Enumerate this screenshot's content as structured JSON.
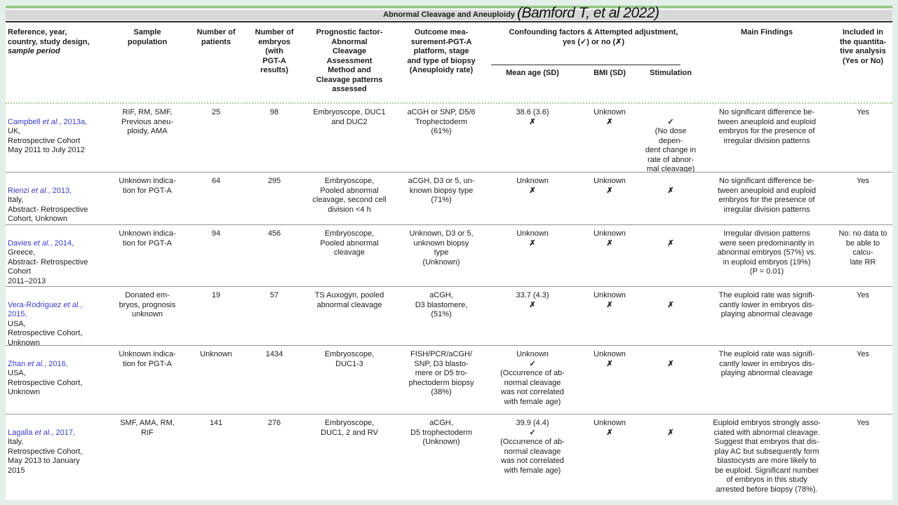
{
  "page": {
    "title": "Abnormal Cleavage and Aneuploidy",
    "annotation": "(Bamford T, et al 2022)"
  },
  "colors": {
    "accent_green": "#97c987",
    "strip_gray": "#d8d8d8",
    "link_blue": "#3a3acb"
  },
  "table": {
    "headers": {
      "reference": "Reference, year,\ncountry, study design,\n",
      "reference_italic": "sample period",
      "sample": "Sample\npopulation",
      "patients": "Number of\npatients",
      "embryos": "Number of\nembryos\n(with\nPGT-A\nresults)",
      "prognostic": "Prognostic factor-\nAbnormal\nCleavage\nAssessment\nMethod and\nCleavage patterns\nassessed",
      "outcome": "Outcome mea-\nsurement-PGT-A\nplatform, stage\nand type of biopsy\n(Aneuploidy rate)",
      "confounding_group": "Confounding factors & Attempted adjustment,\nyes (✓) or no (✗)",
      "mean_age": "Mean age (SD)",
      "bmi": "BMI (SD)",
      "stimulation": "Stimulation",
      "findings": "Main Findings",
      "included": "Included in\nthe quantita-\ntive analysis\n(Yes or No)"
    },
    "rows": [
      {
        "ref": {
          "pre": "Campbell ",
          "etal": "et al.",
          "post": ", 2013a,",
          "rest": "UK,\nRetrospective Cohort\nMay 2011 to July 2012"
        },
        "sample": "RIF, RM, SMF,\nPrevious aneu-\nploidy, AMA",
        "patients": "25",
        "embryos": "98",
        "prognostic": "Embryoscope, DUC1\nand DUC2",
        "outcome": "aCGH or SNP, D5/6\nTrophectoderm\n(61%)",
        "mean_age": {
          "value": "38.6 (3.6)",
          "mark": "✗",
          "note": ""
        },
        "bmi": {
          "value": "Unknown",
          "mark": "✗",
          "note": ""
        },
        "stimulation": {
          "value": "",
          "mark": "✓",
          "note": "(No dose depen-\ndent change in\nrate of abnor-\nmal cleavage)"
        },
        "findings": "No significant difference be-\ntween aneuploid and euploid\nembryos for the presence of\nirregular division patterns",
        "included": "Yes"
      },
      {
        "ref": {
          "pre": "Rienzi ",
          "etal": "et al.",
          "post": ", 2013,",
          "rest": "Italy,\nAbstract- Retrospective\nCohort, Unknown"
        },
        "sample": "Unknown indica-\ntion for PGT-A",
        "patients": "64",
        "embryos": "295",
        "prognostic": "Embryoscope,\nPooled abnormal\ncleavage, second cell\ndivision <4 h",
        "outcome": "aCGH, D3 or 5, un-\nknown biopsy type\n(71%)",
        "mean_age": {
          "value": "Unknown",
          "mark": "✗",
          "note": ""
        },
        "bmi": {
          "value": "Unknown",
          "mark": "✗",
          "note": ""
        },
        "stimulation": {
          "value": "",
          "mark": "✗",
          "note": ""
        },
        "findings": "No significant difference be-\ntween aneuploid and euploid\nembryos for the presence of\nirregular division patterns",
        "included": "Yes"
      },
      {
        "ref": {
          "pre": "Davies ",
          "etal": "et al.",
          "post": ", 2014,",
          "rest": "Greece,\nAbstract- Retrospective\nCohort\n2011–2013"
        },
        "sample": "Unknown indica-\ntion for PGT-A",
        "patients": "94",
        "embryos": "456",
        "prognostic": "Embryoscope,\nPooled abnormal\ncleavage",
        "outcome": "Unknown, D3 or 5,\nunknown biopsy\ntype\n(Unknown)",
        "mean_age": {
          "value": "Unknown",
          "mark": "✗",
          "note": ""
        },
        "bmi": {
          "value": "Unknown",
          "mark": "✗",
          "note": ""
        },
        "stimulation": {
          "value": "",
          "mark": "✗",
          "note": ""
        },
        "findings": "Irregular division patterns\nwere seen predominantly in\nabnormal embryos (57%) vs.\nin euploid embryos (19%)\n(P = 0.01)",
        "included": "No: no data to\nbe able to calcu-\nlate RR"
      },
      {
        "ref": {
          "pre": "Vera-Rodriguez ",
          "etal": "et al.",
          "post": ",\n2015,",
          "rest": "USA,\nRetrospective Cohort,\nUnknown"
        },
        "sample": "Donated em-\nbryos, prognosis\nunknown",
        "patients": "19",
        "embryos": "57",
        "prognostic": "TS Auxogyn, pooled\nabnormal cleavage",
        "outcome": "aCGH,\nD3 blastomere,\n(51%)",
        "mean_age": {
          "value": "33.7 (4.3)",
          "mark": "✗",
          "note": ""
        },
        "bmi": {
          "value": "Unknown",
          "mark": "✗",
          "note": ""
        },
        "stimulation": {
          "value": "",
          "mark": "✗",
          "note": ""
        },
        "findings": "The euploid rate was signifi-\ncantly lower in embryos dis-\nplaying abnormal cleavage",
        "included": "Yes"
      },
      {
        "ref": {
          "pre": "Zhan ",
          "etal": "et al.",
          "post": ", 2016,",
          "rest": "USA,\nRetrospective Cohort,\nUnknown"
        },
        "sample": "Unknown indica-\ntion for PGT-A",
        "patients": "Unknown",
        "embryos": "1434",
        "prognostic": "Embryoscope,\nDUC1-3",
        "outcome": "FISH/PCR/aCGH/\nSNP, D3 blasto-\nmere or D5 tro-\nphectoderm biopsy\n(38%)",
        "mean_age": {
          "value": "Unknown",
          "mark": "✓",
          "note": "(Occurrence of ab-\nnormal cleavage\nwas not correlated\nwith female age)"
        },
        "bmi": {
          "value": "Unknown",
          "mark": "✗",
          "note": ""
        },
        "stimulation": {
          "value": "",
          "mark": "✗",
          "note": ""
        },
        "findings": "The euploid rate was signifi-\ncantly lower in embryos dis-\nplaying abnormal cleavage",
        "included": "Yes"
      },
      {
        "ref": {
          "pre": "Lagalla ",
          "etal": "et al.",
          "post": ", 2017,",
          "rest": "Italy,\nRetrospective Cohort,\nMay 2013 to January\n2015"
        },
        "sample": "SMF, AMA, RM,\nRIF",
        "patients": "141",
        "embryos": "276",
        "prognostic": "Embryoscope,\nDUC1, 2 and RV",
        "outcome": "aCGH,\nD5 trophectoderm\n(Unknown)",
        "mean_age": {
          "value": "39.9 (4.4)",
          "mark": "✓",
          "note": "(Occurrence of ab-\nnormal cleavage\nwas not correlated\nwith female age)"
        },
        "bmi": {
          "value": "Unknown",
          "mark": "✗",
          "note": ""
        },
        "stimulation": {
          "value": "",
          "mark": "✗",
          "note": ""
        },
        "findings": "Euploid embryos strongly asso-\nciated with abnormal cleavage.\nSuggest that embryos that dis-\nplay AC but subsequently form\nblastocysts are more likely to\nbe euploid. Significant number\nof embryos in this study\narrested before biopsy (78%).",
        "included": "Yes"
      }
    ]
  }
}
